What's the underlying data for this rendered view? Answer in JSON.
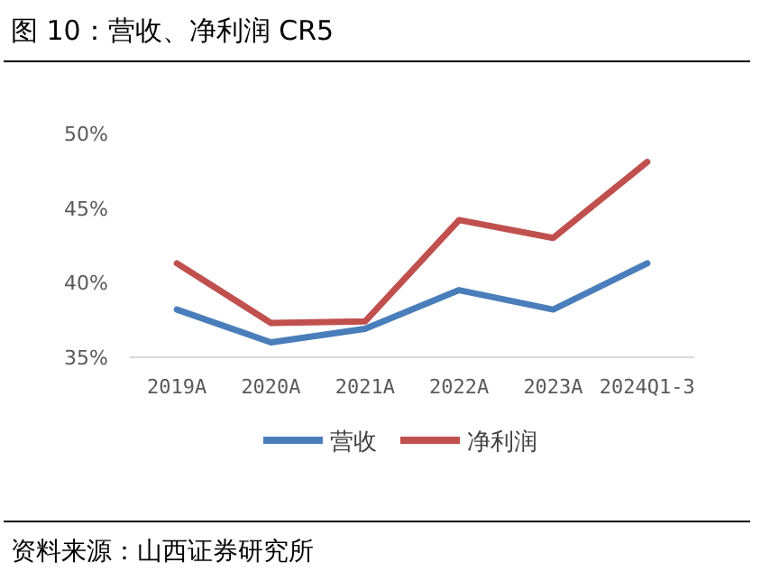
{
  "chart_data": {
    "type": "line",
    "title": "图 10：营收、净利润 CR5",
    "categories": [
      "2019A",
      "2020A",
      "2021A",
      "2022A",
      "2023A",
      "2024Q1-3"
    ],
    "series": [
      {
        "name": "营收",
        "color": "#4a7ebb",
        "values": [
          38.2,
          36.0,
          36.9,
          39.5,
          38.2,
          41.3
        ]
      },
      {
        "name": "净利润",
        "color": "#c0504d",
        "values": [
          41.3,
          37.3,
          37.4,
          44.2,
          43.0,
          48.1
        ]
      }
    ],
    "ylim": [
      35,
      50
    ],
    "yticks": [
      {
        "value": 35,
        "label": "35%"
      },
      {
        "value": 40,
        "label": "40%"
      },
      {
        "value": 45,
        "label": "45%"
      },
      {
        "value": 50,
        "label": "50%"
      }
    ],
    "grid": false,
    "legend": "bottom",
    "marker": "none",
    "line_style": "solid",
    "annotations": [
      "资料来源：山西证券研究所"
    ]
  }
}
